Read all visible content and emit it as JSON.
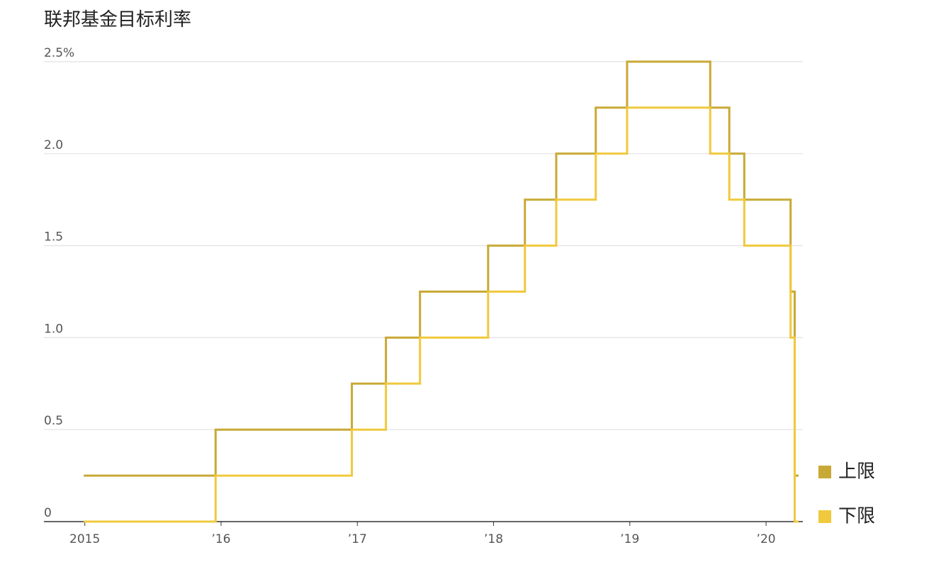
{
  "chart_data": {
    "type": "step-line",
    "title": "联邦基金目标利率",
    "x": [
      2015.0,
      2015.96,
      2016.96,
      2017.21,
      2017.46,
      2017.96,
      2018.23,
      2018.46,
      2018.75,
      2018.98,
      2019.59,
      2019.73,
      2019.84,
      2020.18,
      2020.21,
      2020.23
    ],
    "series": [
      {
        "name": "上限",
        "color": "#c8a935",
        "values": [
          0.25,
          0.5,
          0.75,
          1.0,
          1.25,
          1.5,
          1.75,
          2.0,
          2.25,
          2.5,
          2.25,
          2.0,
          1.75,
          1.25,
          0.25,
          0.25
        ]
      },
      {
        "name": "下限",
        "color": "#f0c93c",
        "values": [
          0,
          0.25,
          0.5,
          0.75,
          1.0,
          1.25,
          1.5,
          1.75,
          2.0,
          2.25,
          2.0,
          1.75,
          1.5,
          1.0,
          0,
          0
        ]
      }
    ],
    "xlim": [
      2014.7,
      2020.27
    ],
    "xticks": [
      {
        "value": 2015,
        "label": "2015"
      },
      {
        "value": 2016,
        "label": "’16"
      },
      {
        "value": 2017,
        "label": "’17"
      },
      {
        "value": 2018,
        "label": "’18"
      },
      {
        "value": 2019,
        "label": "’19"
      },
      {
        "value": 2020,
        "label": "’20"
      }
    ],
    "ylim": [
      0,
      2.5
    ],
    "yticks": [
      0,
      0.5,
      {
        "value": 1.0,
        "label": "1.0"
      },
      1.5,
      {
        "value": 2.0,
        "label": "2.0"
      },
      {
        "value": 2.5,
        "label": "2.5%"
      }
    ],
    "grid": true
  }
}
